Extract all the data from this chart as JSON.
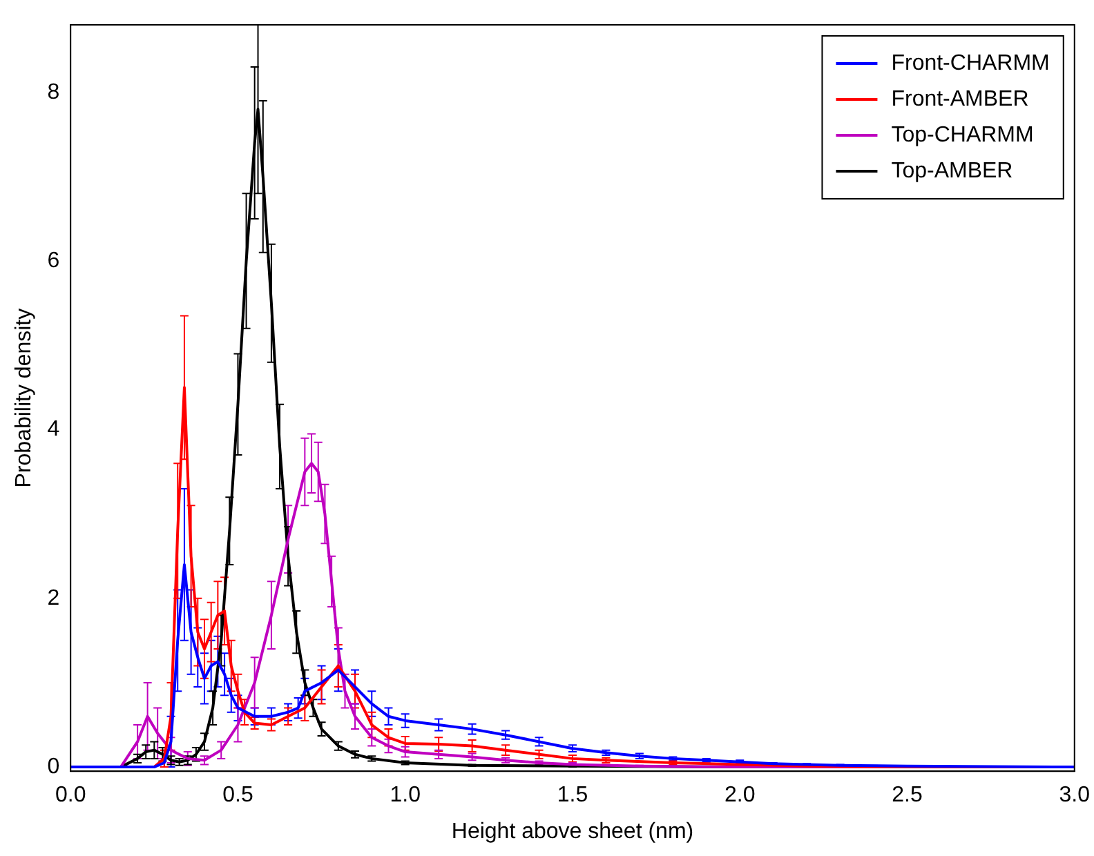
{
  "chart_data": {
    "type": "line",
    "xlabel": "Height above sheet (nm)",
    "ylabel": "Probability density",
    "xlim": [
      0,
      3
    ],
    "xticks": [
      {
        "value": 0,
        "label": "0.0"
      },
      {
        "value": 0.5,
        "label": "0.5"
      },
      {
        "value": 1,
        "label": "1.0"
      },
      {
        "value": 1.5,
        "label": "1.5"
      },
      {
        "value": 2,
        "label": "2.0"
      },
      {
        "value": 2.5,
        "label": "2.5"
      },
      {
        "value": 3,
        "label": "3.0"
      }
    ],
    "ylim": [
      -0.05,
      8.8
    ],
    "yticks": [
      0,
      2,
      4,
      6,
      8
    ],
    "legend": "top right",
    "marker": "none",
    "line_style": "solid",
    "series": [
      {
        "name": "Front-CHARMM",
        "color": "#0000ff",
        "x": [
          0,
          0.25,
          0.28,
          0.3,
          0.32,
          0.34,
          0.36,
          0.38,
          0.4,
          0.42,
          0.44,
          0.46,
          0.48,
          0.5,
          0.55,
          0.6,
          0.65,
          0.68,
          0.7,
          0.75,
          0.8,
          0.85,
          0.9,
          0.95,
          1.0,
          1.1,
          1.2,
          1.3,
          1.4,
          1.5,
          1.6,
          1.7,
          1.8,
          1.9,
          2.0,
          2.1,
          2.2,
          2.3,
          2.5,
          3.0
        ],
        "values": [
          0,
          0,
          0.05,
          0.3,
          1.5,
          2.4,
          1.6,
          1.3,
          1.05,
          1.2,
          1.25,
          1.1,
          0.85,
          0.7,
          0.6,
          0.6,
          0.65,
          0.7,
          0.9,
          1.0,
          1.15,
          0.95,
          0.75,
          0.6,
          0.55,
          0.5,
          0.45,
          0.38,
          0.3,
          0.22,
          0.17,
          0.13,
          0.1,
          0.08,
          0.06,
          0.04,
          0.03,
          0.02,
          0.01,
          0
        ],
        "errors": [
          0,
          0,
          0.05,
          0.3,
          0.6,
          0.9,
          0.5,
          0.35,
          0.3,
          0.3,
          0.3,
          0.25,
          0.2,
          0.15,
          0.1,
          0.1,
          0.1,
          0.12,
          0.15,
          0.2,
          0.25,
          0.2,
          0.15,
          0.1,
          0.08,
          0.07,
          0.06,
          0.05,
          0.05,
          0.04,
          0.03,
          0.03,
          0.02,
          0.02,
          0.02,
          0.01,
          0.01,
          0.01,
          0,
          0
        ]
      },
      {
        "name": "Front-AMBER",
        "color": "#ff0000",
        "x": [
          0,
          0.25,
          0.28,
          0.3,
          0.32,
          0.34,
          0.36,
          0.38,
          0.4,
          0.42,
          0.44,
          0.46,
          0.48,
          0.5,
          0.52,
          0.55,
          0.6,
          0.65,
          0.7,
          0.75,
          0.8,
          0.85,
          0.9,
          0.95,
          1.0,
          1.1,
          1.2,
          1.3,
          1.4,
          1.5,
          1.6,
          1.8,
          2.0,
          2.2,
          2.5,
          3.0
        ],
        "values": [
          0,
          0,
          0.1,
          0.6,
          2.8,
          4.5,
          2.5,
          1.6,
          1.4,
          1.6,
          1.8,
          1.85,
          1.2,
          0.9,
          0.65,
          0.52,
          0.5,
          0.6,
          0.7,
          0.95,
          1.2,
          0.9,
          0.5,
          0.35,
          0.28,
          0.27,
          0.25,
          0.2,
          0.15,
          0.1,
          0.08,
          0.05,
          0.03,
          0.01,
          0,
          0
        ],
        "errors": [
          0,
          0,
          0.1,
          0.4,
          0.8,
          0.85,
          0.6,
          0.4,
          0.35,
          0.35,
          0.4,
          0.4,
          0.3,
          0.2,
          0.15,
          0.07,
          0.07,
          0.1,
          0.15,
          0.2,
          0.25,
          0.2,
          0.15,
          0.1,
          0.08,
          0.08,
          0.07,
          0.06,
          0.05,
          0.04,
          0.03,
          0.02,
          0.02,
          0.01,
          0,
          0
        ]
      },
      {
        "name": "Top-CHARMM",
        "color": "#bf00bf",
        "x": [
          0,
          0.15,
          0.2,
          0.23,
          0.26,
          0.3,
          0.35,
          0.4,
          0.45,
          0.5,
          0.55,
          0.6,
          0.65,
          0.7,
          0.72,
          0.74,
          0.76,
          0.78,
          0.8,
          0.82,
          0.85,
          0.9,
          0.95,
          1.0,
          1.1,
          1.2,
          1.3,
          1.4,
          1.5,
          1.7,
          2.0,
          3.0
        ],
        "values": [
          0,
          0,
          0.3,
          0.6,
          0.4,
          0.2,
          0.1,
          0.08,
          0.2,
          0.5,
          1.0,
          1.8,
          2.7,
          3.5,
          3.6,
          3.5,
          3.0,
          2.2,
          1.4,
          0.9,
          0.6,
          0.35,
          0.25,
          0.18,
          0.15,
          0.12,
          0.08,
          0.05,
          0.03,
          0.01,
          0,
          0
        ],
        "errors": [
          0,
          0,
          0.2,
          0.4,
          0.3,
          0.15,
          0.08,
          0.05,
          0.1,
          0.2,
          0.3,
          0.4,
          0.4,
          0.4,
          0.35,
          0.35,
          0.35,
          0.3,
          0.25,
          0.2,
          0.15,
          0.1,
          0.08,
          0.06,
          0.05,
          0.04,
          0.03,
          0.02,
          0.02,
          0.01,
          0,
          0
        ]
      },
      {
        "name": "Top-AMBER",
        "color": "#000000",
        "x": [
          0,
          0.15,
          0.2,
          0.225,
          0.25,
          0.275,
          0.3,
          0.325,
          0.35,
          0.375,
          0.4,
          0.425,
          0.45,
          0.475,
          0.5,
          0.525,
          0.55,
          0.56,
          0.575,
          0.6,
          0.625,
          0.65,
          0.675,
          0.7,
          0.725,
          0.75,
          0.8,
          0.85,
          0.9,
          1.0,
          1.2,
          1.5,
          2.0,
          3.0
        ],
        "values": [
          0,
          0,
          0.1,
          0.18,
          0.2,
          0.15,
          0.08,
          0.06,
          0.08,
          0.15,
          0.3,
          0.7,
          1.5,
          2.8,
          4.3,
          6.0,
          7.4,
          7.8,
          7.0,
          5.5,
          3.8,
          2.5,
          1.6,
          1.0,
          0.7,
          0.45,
          0.25,
          0.15,
          0.1,
          0.05,
          0.02,
          0.01,
          0,
          0
        ],
        "errors": [
          0,
          0,
          0.05,
          0.08,
          0.1,
          0.08,
          0.05,
          0.04,
          0.05,
          0.08,
          0.1,
          0.2,
          0.3,
          0.4,
          0.6,
          0.8,
          0.9,
          1.0,
          0.9,
          0.7,
          0.5,
          0.35,
          0.25,
          0.15,
          0.1,
          0.08,
          0.05,
          0.04,
          0.03,
          0.02,
          0.01,
          0.01,
          0,
          0
        ]
      }
    ]
  }
}
